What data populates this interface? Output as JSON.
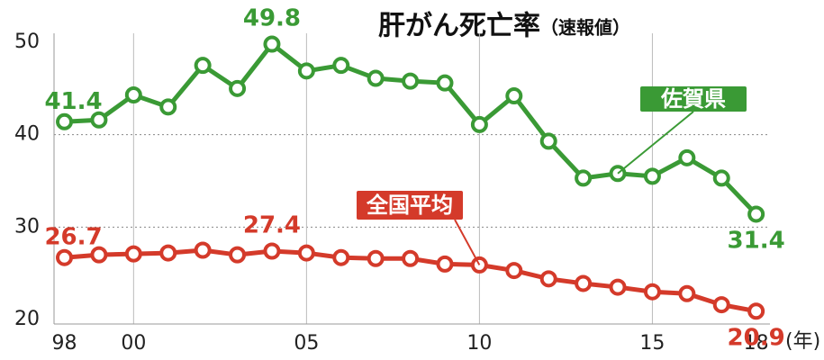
{
  "chart_data": {
    "type": "line",
    "title": "肝がん死亡率",
    "subtitle": "（速報値）",
    "x_label": "(年)",
    "x": [
      1998,
      1999,
      2000,
      2001,
      2002,
      2003,
      2004,
      2005,
      2006,
      2007,
      2008,
      2009,
      2010,
      2011,
      2012,
      2013,
      2014,
      2015,
      2016,
      2017,
      2018
    ],
    "series": [
      {
        "name": "佐賀県",
        "color": "#3a9a35",
        "values": [
          41.4,
          41.6,
          44.3,
          43.0,
          47.5,
          45.0,
          49.8,
          46.9,
          47.5,
          46.1,
          45.8,
          45.6,
          41.1,
          44.2,
          39.3,
          35.3,
          35.8,
          35.5,
          37.5,
          35.3,
          31.4
        ]
      },
      {
        "name": "全国平均",
        "color": "#d43a2a",
        "values": [
          26.7,
          27.0,
          27.1,
          27.2,
          27.5,
          27.0,
          27.4,
          27.2,
          26.7,
          26.6,
          26.6,
          26.0,
          25.9,
          25.3,
          24.4,
          23.9,
          23.5,
          23.0,
          22.8,
          21.6,
          20.9
        ]
      }
    ],
    "xlim": [
      1997.7,
      2018.4
    ],
    "xticks": [
      {
        "value": 1998,
        "label": "98"
      },
      {
        "value": 2000,
        "label": "00"
      },
      {
        "value": 2005,
        "label": "05"
      },
      {
        "value": 2010,
        "label": "10"
      },
      {
        "value": 2015,
        "label": "15"
      },
      {
        "value": 2018,
        "label": "18"
      }
    ],
    "ylim": [
      20,
      50
    ],
    "yticks": [
      20,
      30,
      40,
      50
    ],
    "grid": true
  }
}
